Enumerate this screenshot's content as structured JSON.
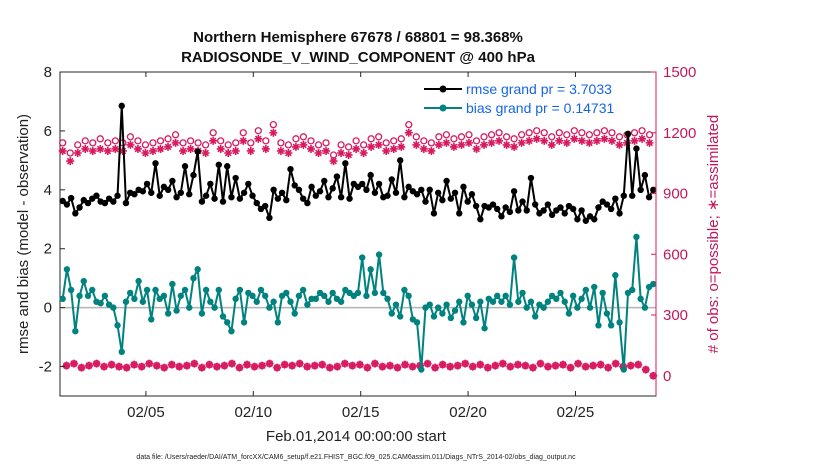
{
  "chart_data": {
    "type": "line",
    "title_line1": "Northern Hemisphere 67678 / 68801 = 98.368%",
    "title_line2": "RADIOSONDE_V_WIND_COMPONENT @ 400 hPa",
    "xlabel": "Feb.01,2014 00:00:00 start",
    "ylabel": "rmse and bias (model - observation)",
    "ylabel_right": "# of obs: o=possible; ∗=assimilated",
    "footer": "data file: /Users/raeder/DAI/ATM_forcXX/CAM6_setup/f.e21.FHIST_BGC.f09_025.CAM6assim.011/Diags_NTrS_2014-02/obs_diag_output.nc",
    "x_range": [
      1.0,
      28.75
    ],
    "ylim": [
      -3,
      8
    ],
    "ylim_right": [
      -100,
      1500
    ],
    "x_ticks": [
      5,
      10,
      15,
      20,
      25
    ],
    "x_tick_labels": [
      "02/05",
      "02/10",
      "02/15",
      "02/20",
      "02/25"
    ],
    "y_ticks": [
      -2,
      0,
      2,
      4,
      6,
      8
    ],
    "y_tick_labels": [
      "-2",
      "0",
      "2",
      "4",
      "6",
      "8"
    ],
    "y_ticks_right": [
      0,
      300,
      600,
      900,
      1200,
      1500
    ],
    "y_tick_labels_right": [
      "0",
      "300",
      "600",
      "900",
      "1200",
      "1500"
    ],
    "legend_position": "top-right",
    "grid": false,
    "colors": {
      "rmse": "#000000",
      "bias": "#00837f",
      "obs": "#d81b60",
      "zero": "#b3b3b3"
    },
    "series": [
      {
        "name": "rmse grand pr = 3.7033",
        "key": "rmse",
        "values": [
          3.62,
          3.5,
          3.72,
          3.2,
          3.4,
          3.65,
          3.55,
          3.7,
          3.8,
          3.6,
          3.55,
          3.7,
          3.6,
          3.8,
          6.85,
          3.55,
          3.9,
          3.85,
          4.0,
          3.95,
          4.2,
          3.9,
          4.9,
          3.8,
          4.1,
          4.0,
          4.3,
          3.75,
          3.9,
          4.8,
          3.85,
          4.5,
          5.3,
          3.6,
          3.8,
          4.2,
          3.7,
          4.85,
          3.6,
          4.8,
          3.75,
          4.4,
          3.7,
          3.9,
          4.2,
          3.8,
          3.55,
          3.35,
          3.45,
          3.05,
          4.0,
          3.7,
          3.9,
          3.65,
          4.7,
          4.15,
          4.0,
          3.7,
          3.55,
          4.1,
          3.8,
          3.95,
          4.3,
          3.75,
          4.05,
          4.45,
          3.75,
          4.9,
          3.7,
          4.2,
          4.1,
          4.2,
          4.0,
          4.5,
          3.9,
          4.2,
          3.75,
          3.8,
          4.35,
          3.9,
          5.0,
          3.75,
          4.1,
          3.95,
          3.85,
          4.0,
          3.6,
          4.0,
          3.2,
          3.9,
          3.65,
          4.3,
          3.7,
          3.9,
          3.2,
          4.1,
          3.6,
          3.85,
          3.45,
          3.0,
          3.45,
          3.4,
          3.5,
          3.35,
          3.1,
          3.4,
          3.25,
          3.95,
          3.3,
          3.6,
          3.3,
          4.4,
          3.5,
          3.2,
          3.3,
          3.5,
          3.15,
          3.3,
          3.4,
          3.2,
          3.45,
          3.35,
          3.0,
          3.3,
          2.95,
          3.1,
          3.0,
          3.4,
          3.6,
          3.5,
          3.35,
          3.7,
          3.2,
          3.8,
          5.9,
          3.8,
          5.4,
          4.0,
          4.5,
          3.75,
          4.0
        ]
      },
      {
        "name": "bias grand pr = 0.14731",
        "key": "bias",
        "values": [
          0.3,
          1.3,
          0.6,
          -0.8,
          0.4,
          0.9,
          0.4,
          0.6,
          0.2,
          0.15,
          0.4,
          0.1,
          0.0,
          -0.6,
          -1.5,
          0.2,
          0.5,
          0.3,
          0.9,
          0.2,
          0.6,
          -0.4,
          0.6,
          0.3,
          0.4,
          -0.2,
          0.8,
          -0.1,
          0.4,
          0.6,
          0.0,
          1.0,
          1.3,
          -0.2,
          0.6,
          0.2,
          0.0,
          0.6,
          -0.3,
          -0.5,
          -0.8,
          0.3,
          0.6,
          -0.5,
          0.5,
          0.4,
          0.2,
          0.6,
          0.4,
          0.0,
          0.2,
          -0.5,
          0.4,
          0.5,
          0.2,
          -0.2,
          0.4,
          0.6,
          0.1,
          0.3,
          0.3,
          0.5,
          0.4,
          0.2,
          0.5,
          0.3,
          0.2,
          0.6,
          0.5,
          0.4,
          0.5,
          1.7,
          0.4,
          1.3,
          0.5,
          1.8,
          0.5,
          0.3,
          -0.2,
          0.1,
          -0.3,
          0.6,
          0.4,
          -0.4,
          -0.5,
          -2.1,
          0.0,
          0.1,
          -0.3,
          0.0,
          -0.2,
          0.1,
          -0.35,
          -0.1,
          0.2,
          -0.5,
          0.4,
          0.1,
          -0.35,
          0.2,
          -0.7,
          0.3,
          0.2,
          0.4,
          0.2,
          0.4,
          0.1,
          1.7,
          0.2,
          0.5,
          0.0,
          0.2,
          -0.3,
          0.1,
          0.0,
          0.2,
          0.4,
          0.3,
          0.5,
          0.2,
          -0.2,
          0.4,
          0.0,
          0.3,
          0.6,
          0.0,
          0.7,
          -0.6,
          0.5,
          -0.2,
          -0.6,
          1.1,
          -0.5,
          -2.1,
          0.5,
          0.6,
          2.4,
          0.3,
          0.0,
          0.7,
          0.8
        ]
      },
      {
        "name": "obs possible",
        "key": "obs_possible",
        "axis": "right",
        "marker": "o",
        "values": [
          1150,
          50,
          1100,
          60,
          1140,
          40,
          1160,
          50,
          1150,
          60,
          1170,
          45,
          1150,
          55,
          1160,
          45,
          1150,
          40,
          1180,
          55,
          1160,
          45,
          1140,
          60,
          1150,
          50,
          1160,
          40,
          1170,
          55,
          1190,
          45,
          1150,
          50,
          1160,
          60,
          1150,
          40,
          1140,
          55,
          1200,
          45,
          1160,
          50,
          1140,
          60,
          1150,
          40,
          1200,
          55,
          1150,
          45,
          1210,
          50,
          1160,
          60,
          1240,
          40,
          1150,
          55,
          1140,
          50,
          1170,
          60,
          1180,
          45,
          1160,
          50,
          1140,
          55,
          1150,
          40,
          1090,
          45,
          1140,
          60,
          1130,
          50,
          1160,
          55,
          1140,
          40,
          1170,
          60,
          1180,
          45,
          1150,
          50,
          1160,
          40,
          1170,
          55,
          1240,
          45,
          1180,
          50,
          1160,
          60,
          1150,
          40,
          1180,
          55,
          1190,
          45,
          1170,
          50,
          1180,
          60,
          1190,
          45,
          1160,
          55,
          1180,
          40,
          1190,
          50,
          1200,
          60,
          1180,
          45,
          1170,
          55,
          1190,
          50,
          1200,
          40,
          1210,
          60,
          1200,
          45,
          1180,
          50,
          1200,
          55,
          1190,
          40,
          1210,
          60,
          1200,
          45,
          1190,
          50,
          1200,
          55,
          1210,
          40,
          1200,
          60,
          1180,
          45,
          1190,
          50,
          1200,
          55,
          1210,
          30,
          1190,
          0
        ]
      },
      {
        "name": "obs assimilated",
        "key": "obs_assim",
        "axis": "right",
        "marker": "*",
        "values": [
          1110,
          50,
          1060,
          60,
          1100,
          40,
          1120,
          50,
          1110,
          60,
          1120,
          45,
          1110,
          55,
          1120,
          45,
          1110,
          40,
          1140,
          55,
          1120,
          45,
          1100,
          60,
          1110,
          50,
          1120,
          40,
          1130,
          55,
          1150,
          45,
          1110,
          50,
          1120,
          60,
          1110,
          40,
          1100,
          55,
          1160,
          45,
          1120,
          50,
          1100,
          60,
          1110,
          40,
          1160,
          55,
          1110,
          45,
          1170,
          50,
          1120,
          60,
          1200,
          40,
          1110,
          55,
          1100,
          50,
          1130,
          60,
          1140,
          45,
          1120,
          50,
          1100,
          55,
          1110,
          40,
          1060,
          45,
          1100,
          60,
          1090,
          50,
          1120,
          55,
          1100,
          40,
          1130,
          60,
          1140,
          45,
          1110,
          50,
          1120,
          40,
          1130,
          55,
          1200,
          45,
          1140,
          50,
          1120,
          60,
          1110,
          40,
          1140,
          55,
          1150,
          45,
          1130,
          50,
          1140,
          60,
          1150,
          45,
          1120,
          55,
          1140,
          40,
          1150,
          50,
          1160,
          60,
          1140,
          45,
          1130,
          55,
          1150,
          50,
          1160,
          40,
          1170,
          60,
          1160,
          45,
          1140,
          50,
          1160,
          55,
          1150,
          40,
          1170,
          60,
          1160,
          45,
          1150,
          50,
          1160,
          55,
          1170,
          40,
          1160,
          60,
          1140,
          45,
          1150,
          50,
          1160,
          55,
          1170,
          30,
          1150,
          0
        ]
      }
    ]
  }
}
